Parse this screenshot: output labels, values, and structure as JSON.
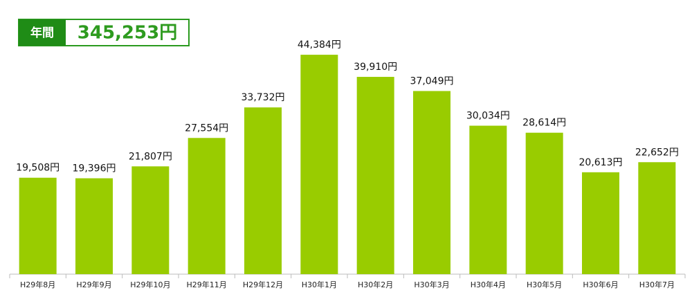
{
  "chart_data": {
    "type": "bar",
    "total_label": "年間",
    "total": "345,253円",
    "categories": [
      "H29年8月",
      "H29年9月",
      "H29年10月",
      "H29年11月",
      "H29年12月",
      "H30年1月",
      "H30年2月",
      "H30年3月",
      "H30年4月",
      "H30年5月",
      "H30年6月",
      "H30年7月"
    ],
    "values": [
      19508,
      19396,
      21807,
      27554,
      33732,
      44384,
      39910,
      37049,
      30034,
      28614,
      20613,
      22652
    ],
    "value_labels": [
      "19,508円",
      "19,396円",
      "21,807円",
      "27,554円",
      "33,732円",
      "44,384円",
      "39,910円",
      "37,049円",
      "30,034円",
      "28,614円",
      "20,613円",
      "22,652円"
    ],
    "color": "#99cc00",
    "ylim": [
      0,
      50000
    ]
  }
}
